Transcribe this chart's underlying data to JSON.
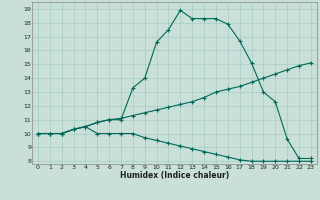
{
  "xlabel": "Humidex (Indice chaleur)",
  "bg_color": "#c8e0d8",
  "grid_color": "#a8ccc4",
  "line_color": "#006858",
  "ylim": [
    7.8,
    19.5
  ],
  "xlim": [
    -0.5,
    23.5
  ],
  "yticks": [
    8,
    9,
    10,
    11,
    12,
    13,
    14,
    15,
    16,
    17,
    18,
    19
  ],
  "xticks": [
    0,
    1,
    2,
    3,
    4,
    5,
    6,
    7,
    8,
    9,
    10,
    11,
    12,
    13,
    14,
    15,
    16,
    17,
    18,
    19,
    20,
    21,
    22,
    23
  ],
  "line1_x": [
    0,
    1,
    2,
    3,
    4,
    5,
    6,
    7,
    8,
    9,
    10,
    11,
    12,
    13,
    14,
    15,
    16,
    17,
    18,
    19,
    20,
    21,
    22,
    23
  ],
  "line1_y": [
    10,
    10,
    10,
    10.3,
    10.5,
    10.8,
    11.0,
    11.0,
    13.3,
    14.0,
    16.6,
    17.5,
    18.9,
    18.3,
    18.3,
    18.3,
    17.9,
    16.7,
    15.1,
    13.0,
    12.3,
    9.6,
    8.2,
    8.2
  ],
  "line2_x": [
    0,
    1,
    2,
    3,
    4,
    5,
    6,
    7,
    8,
    9,
    10,
    11,
    12,
    13,
    14,
    15,
    16,
    17,
    18,
    19,
    20,
    21,
    22,
    23
  ],
  "line2_y": [
    10,
    10,
    10,
    10.3,
    10.5,
    10.8,
    11.0,
    11.1,
    11.3,
    11.5,
    11.7,
    11.9,
    12.1,
    12.3,
    12.6,
    13.0,
    13.2,
    13.4,
    13.7,
    14.0,
    14.3,
    14.6,
    14.9,
    15.1
  ],
  "line3_x": [
    0,
    1,
    2,
    3,
    4,
    5,
    6,
    7,
    8,
    9,
    10,
    11,
    12,
    13,
    14,
    15,
    16,
    17,
    18,
    19,
    20,
    21,
    22,
    23
  ],
  "line3_y": [
    10,
    10,
    10,
    10.3,
    10.5,
    10.0,
    10.0,
    10.0,
    10.0,
    9.7,
    9.5,
    9.3,
    9.1,
    8.9,
    8.7,
    8.5,
    8.3,
    8.1,
    8.0,
    8.0,
    8.0,
    8.0,
    8.0,
    8.0
  ]
}
